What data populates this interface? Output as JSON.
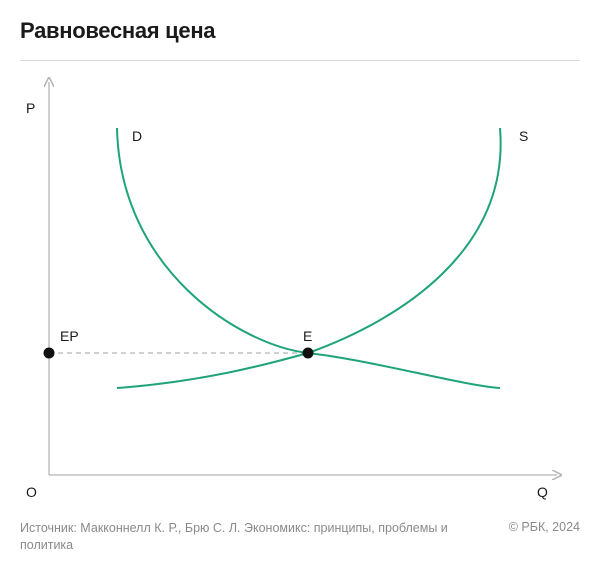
{
  "title": "Равновесная цена",
  "axes": {
    "y_label": "P",
    "x_label": "Q",
    "origin_label": "O"
  },
  "curves": {
    "demand_label": "D",
    "supply_label": "S"
  },
  "points": {
    "equilibrium_label": "E",
    "price_label": "EP"
  },
  "colors": {
    "curve": "#1fa37a",
    "axis": "#b5b5b5",
    "dashed": "#b5b5b5",
    "point": "#111111"
  },
  "footer": {
    "source": "Источник: Макконнелл К. Р., Брю С. Л. Экономикс: принципы, проблемы и политика",
    "copyright": "© РБК, 2024"
  }
}
